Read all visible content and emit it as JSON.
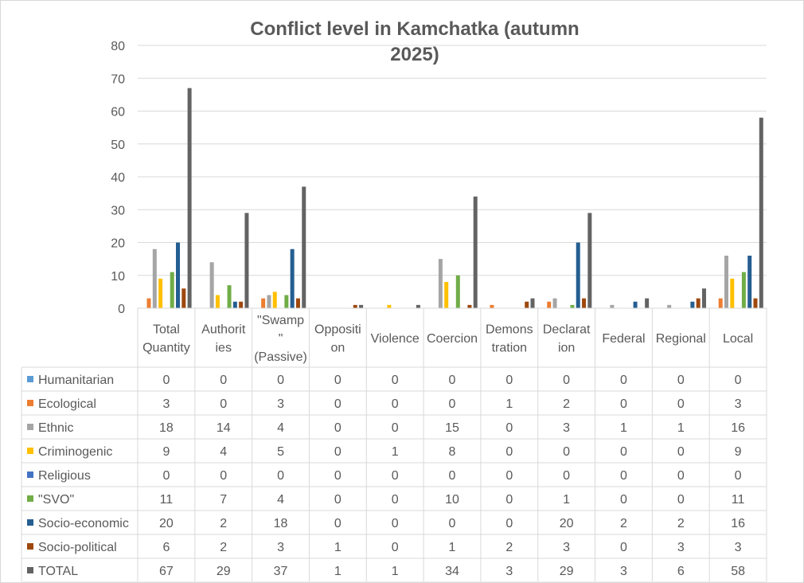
{
  "chart_data": {
    "type": "bar",
    "title": "Conflict level in Kamchatka (autumn 2025)",
    "title_lines": [
      "Conflict level in Kamchatka (autumn",
      "2025)"
    ],
    "ylim": [
      0,
      80
    ],
    "y_ticks": [
      "0",
      "10",
      "20",
      "30",
      "40",
      "50",
      "60",
      "70",
      "80"
    ],
    "grid": true,
    "legend": "data-table",
    "categories": [
      "Total Quantity",
      "Authorities",
      "\"Swamp\" (Passive)",
      "Opposition",
      "Violence",
      "Coercion",
      "Demonstration",
      "Declaration",
      "Federal",
      "Regional",
      "Local"
    ],
    "category_label_lines": [
      [
        "Total",
        "Quantity"
      ],
      [
        "Authorit",
        "ies"
      ],
      [
        "\"Swamp",
        "\"",
        "(Passive)"
      ],
      [
        "Oppositi",
        "on"
      ],
      [
        "Violence"
      ],
      [
        "Coercion"
      ],
      [
        "Demons",
        "tration"
      ],
      [
        "Declarat",
        "ion"
      ],
      [
        "Federal"
      ],
      [
        "Regional"
      ],
      [
        "Local"
      ]
    ],
    "series": [
      {
        "name": "Humanitarian",
        "color": "#5b9bd5",
        "values": [
          0,
          0,
          0,
          0,
          0,
          0,
          0,
          0,
          0,
          0,
          0
        ]
      },
      {
        "name": "Ecological",
        "color": "#ed7d31",
        "values": [
          3,
          0,
          3,
          0,
          0,
          0,
          1,
          2,
          0,
          0,
          3
        ]
      },
      {
        "name": "Ethnic",
        "color": "#a5a5a5",
        "values": [
          18,
          14,
          4,
          0,
          0,
          15,
          0,
          3,
          1,
          1,
          16
        ]
      },
      {
        "name": "Criminogenic",
        "color": "#ffc000",
        "values": [
          9,
          4,
          5,
          0,
          1,
          8,
          0,
          0,
          0,
          0,
          9
        ]
      },
      {
        "name": "Religious",
        "color": "#4472c4",
        "values": [
          0,
          0,
          0,
          0,
          0,
          0,
          0,
          0,
          0,
          0,
          0
        ]
      },
      {
        "name": "\"SVO\"",
        "color": "#70ad47",
        "values": [
          11,
          7,
          4,
          0,
          0,
          10,
          0,
          1,
          0,
          0,
          11
        ]
      },
      {
        "name": "Socio-economic",
        "color": "#255e91",
        "values": [
          20,
          2,
          18,
          0,
          0,
          0,
          0,
          20,
          2,
          2,
          16
        ]
      },
      {
        "name": "Socio-political",
        "color": "#9e480e",
        "values": [
          6,
          2,
          3,
          1,
          0,
          1,
          2,
          3,
          0,
          3,
          3
        ]
      },
      {
        "name": "TOTAL",
        "color": "#636363",
        "values": [
          67,
          29,
          37,
          1,
          1,
          34,
          3,
          29,
          3,
          6,
          58
        ]
      }
    ]
  }
}
